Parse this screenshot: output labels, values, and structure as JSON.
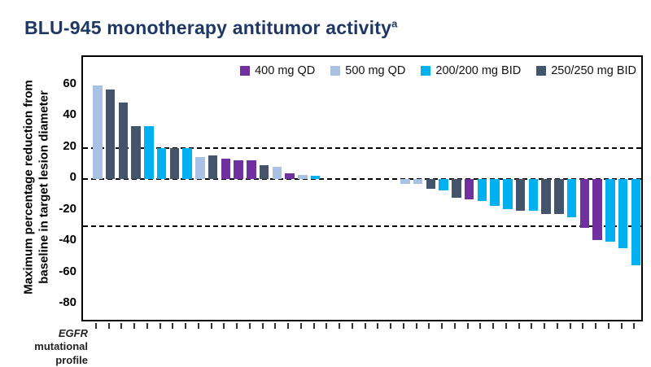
{
  "title": {
    "text": "BLU-945 monotherapy antitumor activity",
    "superscript": "a"
  },
  "colors": {
    "purple": "#7030A0",
    "light_blue": "#A9C2E3",
    "cyan": "#00B0F0",
    "dark_slate": "#44546A",
    "title_navy": "#1F3864"
  },
  "legend": {
    "items": [
      {
        "label": "400 mg QD",
        "color_key": "purple"
      },
      {
        "label": "500 mg QD",
        "color_key": "light_blue"
      },
      {
        "label": "200/200 mg BID",
        "color_key": "cyan"
      },
      {
        "label": "250/250 mg BID",
        "color_key": "dark_slate"
      }
    ]
  },
  "axes": {
    "y_label_line1": "Maximum percentage reduction from",
    "y_label_line2": "baseline in target lesion diameter",
    "y_ticks": [
      60,
      40,
      20,
      0,
      -20,
      -40,
      -60,
      -80
    ],
    "x_label_gene": "EGFR",
    "x_label_rest": "mutational",
    "x_label_line2": "profile"
  },
  "chart_data": {
    "type": "bar",
    "title": "BLU-945 monotherapy antitumor activity",
    "ylabel": "Maximum percentage reduction from baseline in target lesion diameter",
    "xlabel": "EGFR mutational profile",
    "ylim": [
      -92,
      78
    ],
    "grid": false,
    "reference_lines": [
      20,
      0,
      -30
    ],
    "legend_position": "top-right-inside",
    "series_key": [
      "400 mg QD",
      "500 mg QD",
      "200/200 mg BID",
      "250/250 mg BID"
    ],
    "patients": [
      {
        "value": 60,
        "dose": "500 mg QD"
      },
      {
        "value": 57,
        "dose": "250/250 mg BID"
      },
      {
        "value": 49,
        "dose": "250/250 mg BID"
      },
      {
        "value": 34,
        "dose": "250/250 mg BID"
      },
      {
        "value": 34,
        "dose": "200/200 mg BID"
      },
      {
        "value": 20,
        "dose": "200/200 mg BID"
      },
      {
        "value": 20,
        "dose": "250/250 mg BID"
      },
      {
        "value": 20,
        "dose": "200/200 mg BID"
      },
      {
        "value": 14,
        "dose": "500 mg QD"
      },
      {
        "value": 15,
        "dose": "250/250 mg BID"
      },
      {
        "value": 13,
        "dose": "400 mg QD"
      },
      {
        "value": 12,
        "dose": "400 mg QD"
      },
      {
        "value": 12,
        "dose": "400 mg QD"
      },
      {
        "value": 9,
        "dose": "250/250 mg BID"
      },
      {
        "value": 8,
        "dose": "500 mg QD"
      },
      {
        "value": 4,
        "dose": "400 mg QD"
      },
      {
        "value": 3,
        "dose": "500 mg QD"
      },
      {
        "value": 2,
        "dose": "200/200 mg BID"
      },
      {
        "value": 0,
        "dose": null
      },
      {
        "value": 0,
        "dose": null
      },
      {
        "value": 0,
        "dose": null
      },
      {
        "value": 0,
        "dose": null
      },
      {
        "value": 0,
        "dose": null
      },
      {
        "value": 0,
        "dose": null
      },
      {
        "value": -3,
        "dose": "500 mg QD"
      },
      {
        "value": -3,
        "dose": "500 mg QD"
      },
      {
        "value": -6,
        "dose": "250/250 mg BID"
      },
      {
        "value": -7,
        "dose": "200/200 mg BID"
      },
      {
        "value": -12,
        "dose": "250/250 mg BID"
      },
      {
        "value": -13,
        "dose": "400 mg QD"
      },
      {
        "value": -14,
        "dose": "200/200 mg BID"
      },
      {
        "value": -17,
        "dose": "200/200 mg BID"
      },
      {
        "value": -19,
        "dose": "200/200 mg BID"
      },
      {
        "value": -20,
        "dose": "250/250 mg BID"
      },
      {
        "value": -20,
        "dose": "200/200 mg BID"
      },
      {
        "value": -22,
        "dose": "250/250 mg BID"
      },
      {
        "value": -22,
        "dose": "250/250 mg BID"
      },
      {
        "value": -24,
        "dose": "200/200 mg BID"
      },
      {
        "value": -31,
        "dose": "400 mg QD"
      },
      {
        "value": -39,
        "dose": "400 mg QD"
      },
      {
        "value": -40,
        "dose": "200/200 mg BID"
      },
      {
        "value": -44,
        "dose": "200/200 mg BID"
      },
      {
        "value": -55,
        "dose": "200/200 mg BID"
      }
    ]
  }
}
